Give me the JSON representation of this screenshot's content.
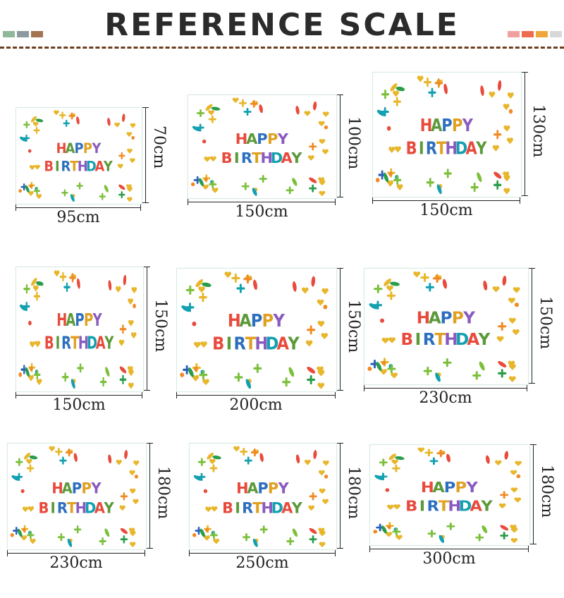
{
  "header": {
    "title": "REFERENCE SCALE",
    "left_swatches": [
      "#8fb89a",
      "#8c9aa0",
      "#a47451"
    ],
    "right_swatches": [
      "#f1a0a0",
      "#ef6b4f",
      "#f0a73a",
      "#d8d8d8"
    ]
  },
  "banner": {
    "line1": "HAPPY",
    "line2": "BIRTHDAY",
    "letter_colors": [
      "#e84a3c",
      "#5a9a3a",
      "#2d6fbf",
      "#e0a020",
      "#8a5ac0",
      "#12a0b0"
    ]
  },
  "sizes": [
    {
      "width": "95cm",
      "height": "70cm"
    },
    {
      "width": "150cm",
      "height": "100cm"
    },
    {
      "width": "150cm",
      "height": "130cm"
    },
    {
      "width": "150cm",
      "height": "150cm"
    },
    {
      "width": "200cm",
      "height": "150cm"
    },
    {
      "width": "230cm",
      "height": "150cm"
    },
    {
      "width": "230cm",
      "height": "180cm"
    },
    {
      "width": "250cm",
      "height": "180cm"
    },
    {
      "width": "300cm",
      "height": "180cm"
    }
  ]
}
